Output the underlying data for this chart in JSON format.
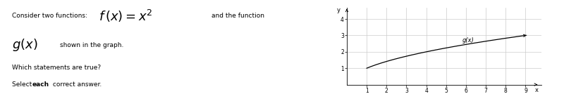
{
  "text_consider": "Consider two functions: ",
  "text_and": "and the function",
  "text_shown": "shown in the graph.",
  "text_which": "Which statements are true?",
  "text_select_a": "Select ",
  "text_select_b": "each",
  "text_select_c": " correct answer.",
  "graph_xlim": [
    0,
    9.8
  ],
  "graph_ylim": [
    0,
    4.7
  ],
  "graph_xticks": [
    1,
    2,
    3,
    4,
    5,
    6,
    7,
    8,
    9
  ],
  "graph_yticks": [
    1,
    2,
    3,
    4
  ],
  "graph_xlabel": "x",
  "graph_ylabel": "y",
  "curve_label": "g(x)",
  "curve_color": "#000000",
  "grid_color": "#cccccc",
  "bg_color": "#ffffff",
  "left_bar_color": "#9b59b6"
}
